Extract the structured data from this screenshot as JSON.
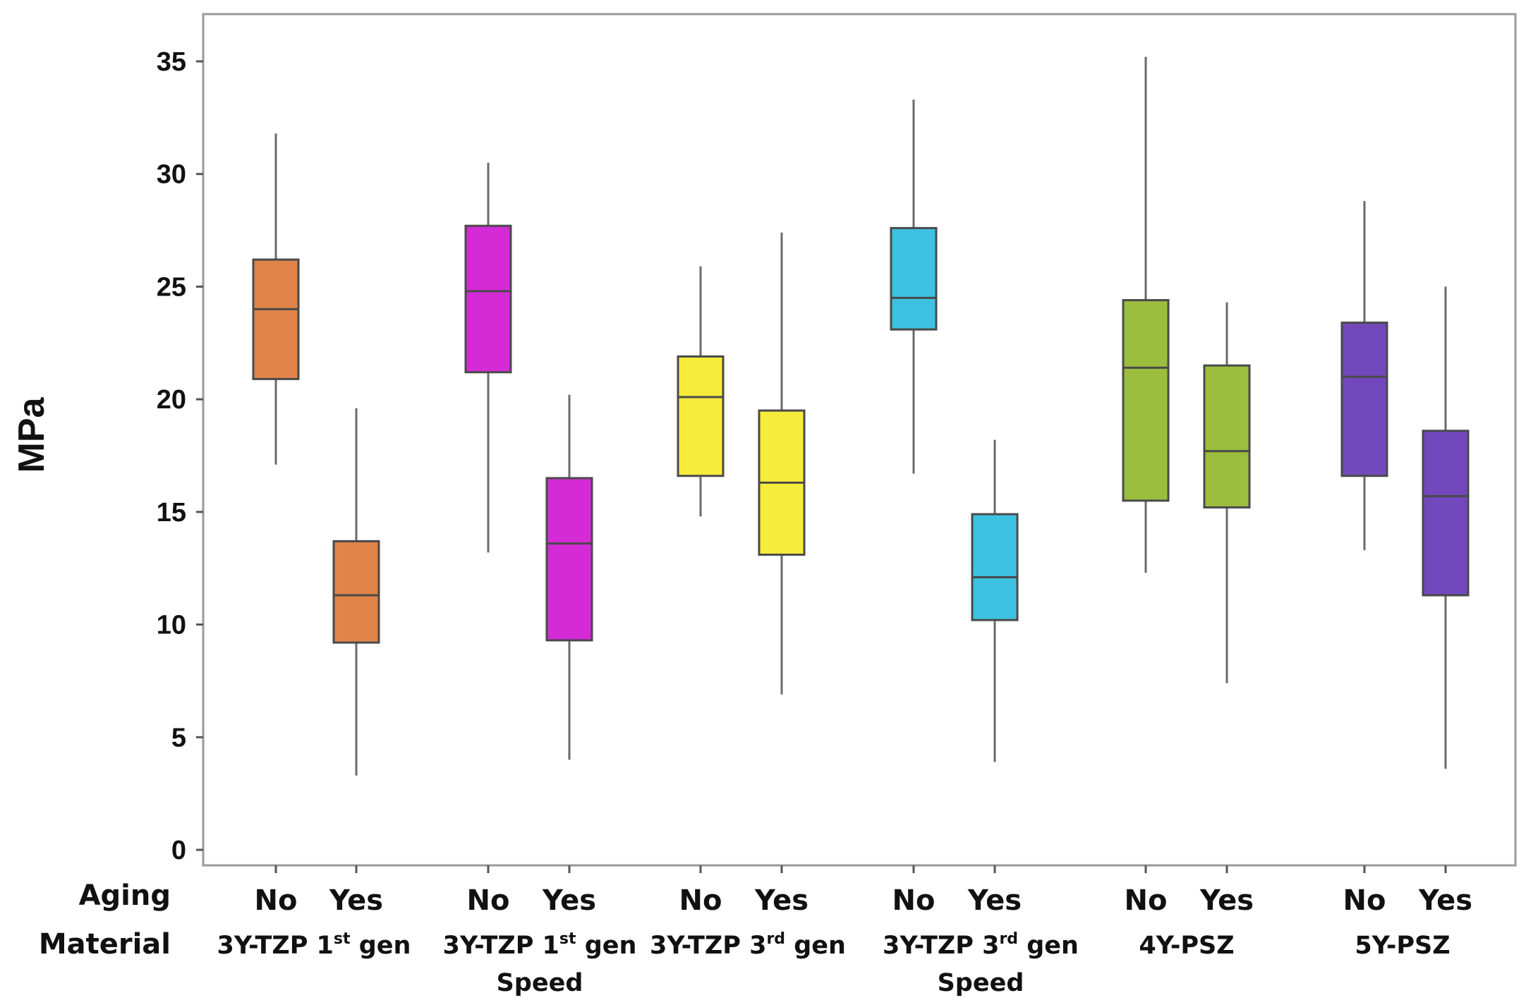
{
  "chart_data": {
    "type": "box",
    "ylabel": "MPa",
    "ylim": [
      0,
      36
    ],
    "yticks": [
      0,
      5,
      10,
      15,
      20,
      25,
      30,
      35
    ],
    "row_labels": {
      "aging": "Aging",
      "material": "Material"
    },
    "groups": [
      {
        "material": {
          "base": "3Y-TZP 1",
          "sup": "st",
          "rest": " gen",
          "line2": ""
        },
        "color": "#E0844A",
        "boxes": [
          {
            "aging": "No",
            "whisker_low": 17.1,
            "q1": 20.9,
            "median": 24.0,
            "q3": 26.2,
            "whisker_high": 31.8
          },
          {
            "aging": "Yes",
            "whisker_low": 3.3,
            "q1": 9.2,
            "median": 11.3,
            "q3": 13.7,
            "whisker_high": 19.6
          }
        ]
      },
      {
        "material": {
          "base": "3Y-TZP 1",
          "sup": "st",
          "rest": " gen",
          "line2": "Speed"
        },
        "color": "#D42BD6",
        "boxes": [
          {
            "aging": "No",
            "whisker_low": 13.2,
            "q1": 21.2,
            "median": 24.8,
            "q3": 27.7,
            "whisker_high": 30.5
          },
          {
            "aging": "Yes",
            "whisker_low": 4.0,
            "q1": 9.3,
            "median": 13.6,
            "q3": 16.5,
            "whisker_high": 20.2
          }
        ]
      },
      {
        "material": {
          "base": "3Y-TZP 3",
          "sup": "rd",
          "rest": " gen",
          "line2": ""
        },
        "color": "#F6EC3B",
        "boxes": [
          {
            "aging": "No",
            "whisker_low": 14.8,
            "q1": 16.6,
            "median": 20.1,
            "q3": 21.9,
            "whisker_high": 25.9
          },
          {
            "aging": "Yes",
            "whisker_low": 6.9,
            "q1": 13.1,
            "median": 16.3,
            "q3": 19.5,
            "whisker_high": 27.4
          }
        ]
      },
      {
        "material": {
          "base": "3Y-TZP 3",
          "sup": "rd",
          "rest": " gen",
          "line2": "Speed"
        },
        "color": "#3DC1E2",
        "boxes": [
          {
            "aging": "No",
            "whisker_low": 16.7,
            "q1": 23.1,
            "median": 24.5,
            "q3": 27.6,
            "whisker_high": 33.3
          },
          {
            "aging": "Yes",
            "whisker_low": 3.9,
            "q1": 10.2,
            "median": 12.1,
            "q3": 14.9,
            "whisker_high": 18.2
          }
        ]
      },
      {
        "material": {
          "base": "4Y-PSZ",
          "sup": "",
          "rest": "",
          "line2": ""
        },
        "color": "#9BBE3E",
        "boxes": [
          {
            "aging": "No",
            "whisker_low": 12.3,
            "q1": 15.5,
            "median": 21.4,
            "q3": 24.4,
            "whisker_high": 35.2
          },
          {
            "aging": "Yes",
            "whisker_low": 7.4,
            "q1": 15.2,
            "median": 17.7,
            "q3": 21.5,
            "whisker_high": 24.3
          }
        ]
      },
      {
        "material": {
          "base": "5Y-PSZ",
          "sup": "",
          "rest": "",
          "line2": ""
        },
        "color": "#7248BC",
        "boxes": [
          {
            "aging": "No",
            "whisker_low": 13.3,
            "q1": 16.6,
            "median": 21.0,
            "q3": 23.4,
            "whisker_high": 28.8
          },
          {
            "aging": "Yes",
            "whisker_low": 3.6,
            "q1": 11.3,
            "median": 15.7,
            "q3": 18.6,
            "whisker_high": 25.0
          }
        ]
      }
    ]
  }
}
